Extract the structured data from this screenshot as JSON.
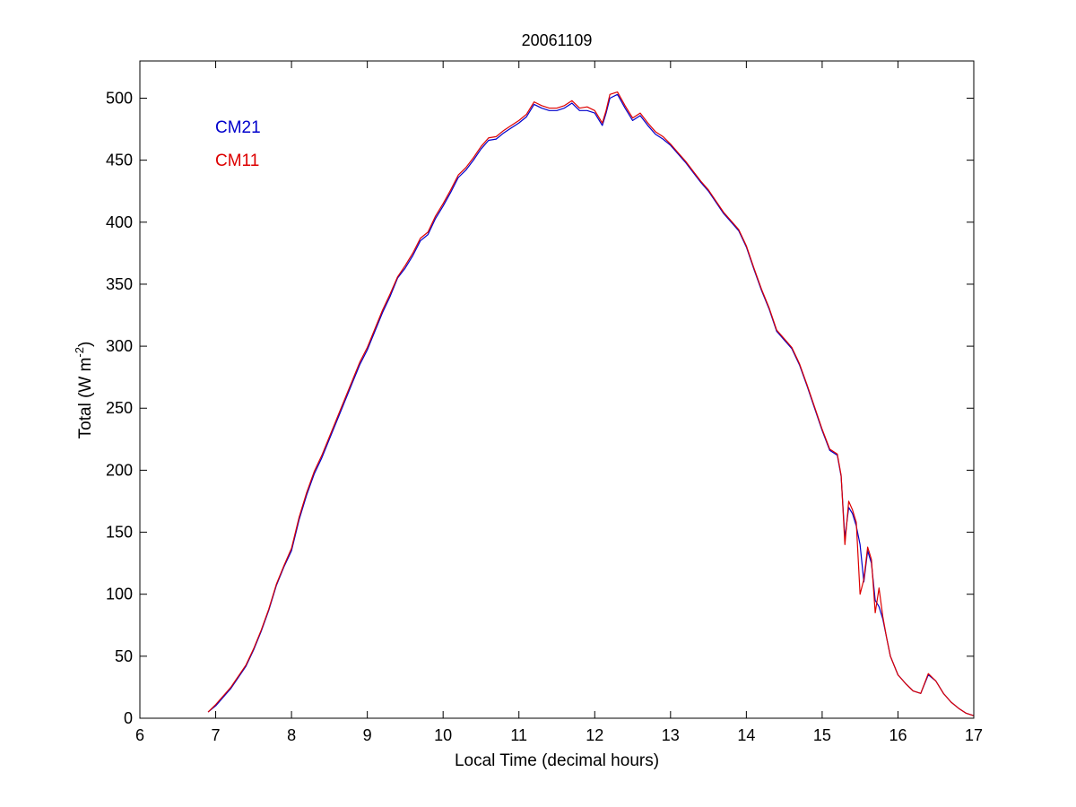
{
  "chart_data": {
    "type": "line",
    "title": "20061109",
    "xlabel": "Local Time (decimal hours)",
    "ylabel_base": "Total (W m",
    "ylabel_sup": "-2",
    "ylabel_close": ")",
    "xlim": [
      6,
      17
    ],
    "ylim": [
      0,
      530
    ],
    "xticks": [
      6,
      7,
      8,
      9,
      10,
      11,
      12,
      13,
      14,
      15,
      16,
      17
    ],
    "yticks": [
      0,
      50,
      100,
      150,
      200,
      250,
      300,
      350,
      400,
      450,
      500
    ],
    "grid": false,
    "legend_position": "top-left",
    "series": [
      {
        "name": "CM21",
        "color": "#0000cc",
        "x": [
          6.9,
          7.0,
          7.2,
          7.4,
          7.5,
          7.6,
          7.7,
          7.8,
          7.9,
          8.0,
          8.1,
          8.2,
          8.3,
          8.4,
          8.5,
          8.6,
          8.7,
          8.8,
          8.9,
          9.0,
          9.1,
          9.2,
          9.3,
          9.4,
          9.5,
          9.6,
          9.7,
          9.8,
          9.9,
          10.0,
          10.1,
          10.2,
          10.3,
          10.4,
          10.5,
          10.6,
          10.7,
          10.8,
          10.9,
          11.0,
          11.1,
          11.2,
          11.3,
          11.4,
          11.5,
          11.6,
          11.7,
          11.8,
          11.9,
          12.0,
          12.1,
          12.15,
          12.2,
          12.3,
          12.4,
          12.5,
          12.6,
          12.7,
          12.8,
          12.9,
          13.0,
          13.1,
          13.2,
          13.3,
          13.4,
          13.5,
          13.6,
          13.7,
          13.8,
          13.9,
          14.0,
          14.1,
          14.2,
          14.3,
          14.4,
          14.5,
          14.6,
          14.7,
          14.8,
          14.9,
          15.0,
          15.1,
          15.2,
          15.25,
          15.3,
          15.35,
          15.4,
          15.45,
          15.5,
          15.55,
          15.6,
          15.65,
          15.7,
          15.75,
          15.8,
          15.85,
          15.9,
          16.0,
          16.1,
          16.2,
          16.3,
          16.4,
          16.5,
          16.6,
          16.7,
          16.8,
          16.9,
          17.0
        ],
        "y": [
          5,
          10,
          24,
          42,
          55,
          70,
          87,
          107,
          122,
          135,
          160,
          180,
          197,
          210,
          225,
          240,
          255,
          270,
          285,
          297,
          312,
          327,
          340,
          355,
          363,
          373,
          385,
          390,
          403,
          413,
          424,
          436,
          442,
          450,
          459,
          466,
          467,
          472,
          476,
          480,
          485,
          495,
          492,
          490,
          490,
          492,
          496,
          490,
          490,
          488,
          478,
          488,
          500,
          503,
          492,
          482,
          486,
          478,
          471,
          467,
          462,
          455,
          448,
          440,
          432,
          425,
          416,
          407,
          400,
          393,
          380,
          362,
          345,
          330,
          312,
          305,
          298,
          285,
          268,
          250,
          232,
          216,
          212,
          195,
          145,
          170,
          165,
          155,
          140,
          110,
          135,
          125,
          95,
          90,
          80,
          65,
          50,
          35,
          28,
          22,
          20,
          35,
          30,
          20,
          13,
          8,
          4,
          2
        ]
      },
      {
        "name": "CM11",
        "color": "#dd0000",
        "x": [
          6.9,
          7.0,
          7.2,
          7.4,
          7.5,
          7.6,
          7.7,
          7.8,
          7.9,
          8.0,
          8.1,
          8.2,
          8.3,
          8.4,
          8.5,
          8.6,
          8.7,
          8.8,
          8.9,
          9.0,
          9.1,
          9.2,
          9.3,
          9.4,
          9.5,
          9.6,
          9.7,
          9.8,
          9.9,
          10.0,
          10.1,
          10.2,
          10.3,
          10.4,
          10.5,
          10.6,
          10.7,
          10.8,
          10.9,
          11.0,
          11.1,
          11.2,
          11.3,
          11.4,
          11.5,
          11.6,
          11.7,
          11.8,
          11.9,
          12.0,
          12.1,
          12.15,
          12.2,
          12.3,
          12.4,
          12.5,
          12.6,
          12.7,
          12.8,
          12.9,
          13.0,
          13.1,
          13.2,
          13.3,
          13.4,
          13.5,
          13.6,
          13.7,
          13.8,
          13.9,
          14.0,
          14.1,
          14.2,
          14.3,
          14.4,
          14.5,
          14.6,
          14.7,
          14.8,
          14.9,
          15.0,
          15.1,
          15.2,
          15.25,
          15.3,
          15.35,
          15.4,
          15.45,
          15.5,
          15.55,
          15.6,
          15.65,
          15.7,
          15.75,
          15.8,
          15.85,
          15.9,
          16.0,
          16.1,
          16.2,
          16.3,
          16.4,
          16.5,
          16.6,
          16.7,
          16.8,
          16.9,
          17.0
        ],
        "y": [
          5,
          11,
          25,
          43,
          56,
          71,
          88,
          108,
          123,
          137,
          162,
          182,
          199,
          212,
          227,
          242,
          257,
          272,
          287,
          299,
          314,
          329,
          342,
          356,
          365,
          375,
          387,
          392,
          405,
          415,
          426,
          438,
          444,
          452,
          461,
          468,
          469,
          474,
          478,
          482,
          487,
          497,
          494,
          492,
          492,
          494,
          498,
          492,
          493,
          490,
          480,
          490,
          503,
          505,
          494,
          484,
          488,
          480,
          473,
          469,
          463,
          456,
          449,
          441,
          433,
          426,
          417,
          408,
          401,
          394,
          381,
          363,
          346,
          331,
          313,
          306,
          299,
          286,
          269,
          251,
          233,
          217,
          213,
          196,
          140,
          175,
          168,
          158,
          100,
          112,
          138,
          128,
          85,
          105,
          82,
          65,
          50,
          35,
          28,
          22,
          20,
          36,
          30,
          20,
          13,
          8,
          4,
          2
        ]
      }
    ]
  }
}
